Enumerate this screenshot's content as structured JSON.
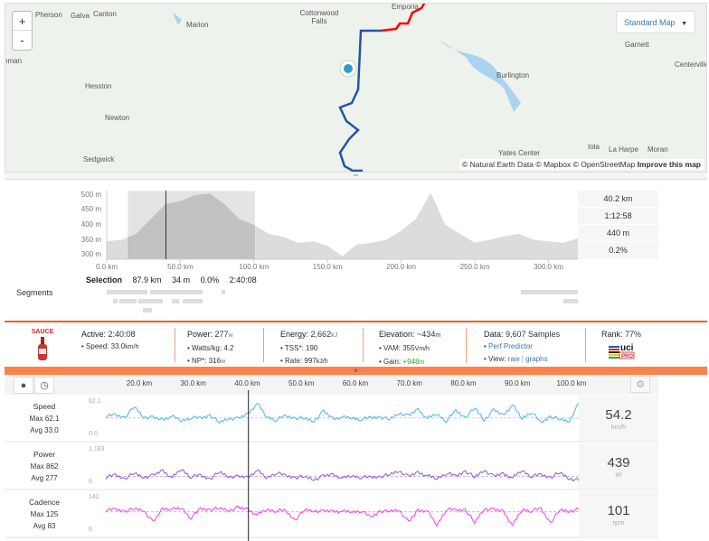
{
  "map": {
    "towns": [
      "Pherson",
      "Galva",
      "Canton",
      "Marion",
      "Cottonwood Falls",
      "Emporia",
      "nman",
      "Hesston",
      "Newton",
      "Sedgwick",
      "Burlington",
      "Garnett",
      "Centerville",
      "Iola",
      "La Harpe",
      "Moran",
      "Yates Center"
    ],
    "zoom_in": "+",
    "zoom_out": "-",
    "map_type": "Standard Map",
    "attribution": "© Natural Earth Data © Mapbox © OpenStreetMap",
    "improve": "Improve this map",
    "route_colors": {
      "selected": "#2255aa",
      "rest": "#ff0000",
      "marker": "#3399cc"
    }
  },
  "elevation": {
    "y_ticks": [
      "500 m",
      "450 m",
      "400 m",
      "350 m",
      "300 m"
    ],
    "x_ticks": [
      "0.0 km",
      "50.0 km",
      "100.0 km",
      "150.0 km",
      "200.0 km",
      "250.0 km",
      "300.0 km"
    ],
    "readout": [
      "40.2 km",
      "1:12:58",
      "440 m",
      "0.2%"
    ],
    "selection": {
      "label": "Selection",
      "distance": "87.9 km",
      "elevation": "34 m",
      "grade": "0.0%",
      "time": "2:40:08"
    },
    "segments_label": "Segments"
  },
  "stats": {
    "logo": "SAUCE",
    "active": {
      "label": "Active:",
      "value": "2:40:08",
      "speed_label": "Speed:",
      "speed": "33.0",
      "speed_unit": "km/h"
    },
    "power": {
      "label": "Power:",
      "value": "277",
      "unit": "w",
      "wkg_label": "Watts/kg:",
      "wkg": "4.2",
      "np_label": "NP*:",
      "np": "316",
      "np_unit": "w"
    },
    "energy": {
      "label": "Energy:",
      "value": "2,662",
      "unit": "kJ",
      "tss_label": "TSS*:",
      "tss": "190",
      "rate_label": "Rate:",
      "rate": "997",
      "rate_unit": "kJ/h"
    },
    "elevation": {
      "label": "Elevation:",
      "value": "~434",
      "unit": "m",
      "vam_label": "VAM:",
      "vam": "355",
      "vam_unit": "Vm/h",
      "gain_label": "Gain:",
      "gain": "+948",
      "gain_unit": "m"
    },
    "data": {
      "label": "Data:",
      "value": "9,607 Samples",
      "perf": "Perf Predictor",
      "view_label": "View:",
      "raw": "raw",
      "sep": "|",
      "graphs": "graphs"
    },
    "rank": {
      "label": "Rank:",
      "value": "77%",
      "badge": "uci PRO"
    }
  },
  "toolbar": {
    "x_ticks": [
      "20.0 km",
      "30.0 km",
      "40.0 km",
      "50.0 km",
      "60.0 km",
      "70.0 km",
      "80.0 km",
      "90.0 km",
      "100.0 km"
    ]
  },
  "streams": [
    {
      "name": "Speed",
      "max_label": "Max 62.1",
      "avg_label": "Avg 33.0",
      "axis_max": "62.1",
      "axis_min": "0.0",
      "current": "54.2",
      "unit": "km/h",
      "color": "#4fb3e8"
    },
    {
      "name": "Power",
      "max_label": "Max 862",
      "avg_label": "Avg 277",
      "axis_max": "1,183",
      "axis_min": "0",
      "current": "439",
      "unit": "W",
      "color": "#8a5cd6"
    },
    {
      "name": "Cadence",
      "max_label": "Max 125",
      "avg_label": "Avg 83",
      "axis_max": "142",
      "axis_min": "0",
      "current": "101",
      "unit": "rpm",
      "color": "#f53cf0"
    }
  ],
  "chart_data": [
    {
      "type": "area",
      "title": "",
      "xlabel": "",
      "ylabel": "",
      "xlim": [
        0,
        320
      ],
      "ylim": [
        285,
        515
      ],
      "selection_km": [
        14,
        101
      ],
      "cursor_km": 40.2,
      "x": [
        0,
        10,
        20,
        30,
        40,
        50,
        60,
        70,
        80,
        90,
        100,
        110,
        120,
        130,
        140,
        150,
        160,
        170,
        180,
        190,
        200,
        210,
        220,
        230,
        240,
        250,
        260,
        270,
        280,
        290,
        300,
        310,
        320
      ],
      "y": [
        345,
        350,
        370,
        420,
        470,
        480,
        500,
        505,
        470,
        420,
        400,
        370,
        360,
        340,
        345,
        330,
        295,
        335,
        340,
        350,
        380,
        420,
        508,
        400,
        370,
        340,
        350,
        362,
        370,
        350,
        345,
        340,
        355
      ]
    },
    {
      "type": "line",
      "xlim": [
        14,
        102
      ],
      "cursor_km": 40.2,
      "series": [
        {
          "name": "Speed",
          "avg": 33.0,
          "ylim": [
            0,
            62.1
          ],
          "values": [
            36,
            38,
            34,
            52,
            35,
            33,
            30,
            36,
            28,
            34,
            32,
            38,
            25,
            33,
            31,
            40,
            58,
            35,
            30,
            36,
            33,
            32,
            28,
            44,
            32,
            34,
            33,
            31,
            33,
            35,
            30,
            42,
            36,
            48,
            32,
            40,
            28,
            45,
            34,
            50,
            30,
            46,
            38,
            55,
            32,
            44,
            24,
            36,
            30,
            28,
            58
          ]
        },
        {
          "name": "Power",
          "avg": 277,
          "ylim": [
            0,
            1183
          ],
          "values": [
            250,
            320,
            210,
            380,
            260,
            300,
            480,
            240,
            520,
            270,
            310,
            200,
            420,
            290,
            260,
            260,
            480,
            230,
            410,
            300,
            250,
            270,
            190,
            280,
            350,
            220,
            300,
            260,
            240,
            280,
            330,
            480,
            260,
            420,
            300,
            210,
            400,
            280,
            460,
            250,
            500,
            270,
            380,
            230,
            480,
            290,
            330,
            250,
            400,
            220,
            150
          ]
        },
        {
          "name": "Cadence",
          "avg": 83,
          "ylim": [
            0,
            142
          ],
          "values": [
            88,
            92,
            86,
            94,
            90,
            40,
            96,
            92,
            98,
            60,
            94,
            92,
            96,
            90,
            98,
            94,
            70,
            92,
            88,
            86,
            50,
            90,
            88,
            84,
            86,
            84,
            82,
            88,
            60,
            86,
            84,
            92,
            40,
            90,
            86,
            30,
            94,
            88,
            92,
            40,
            96,
            90,
            86,
            30,
            92,
            88,
            94,
            40,
            90,
            86,
            92
          ]
        }
      ]
    }
  ]
}
